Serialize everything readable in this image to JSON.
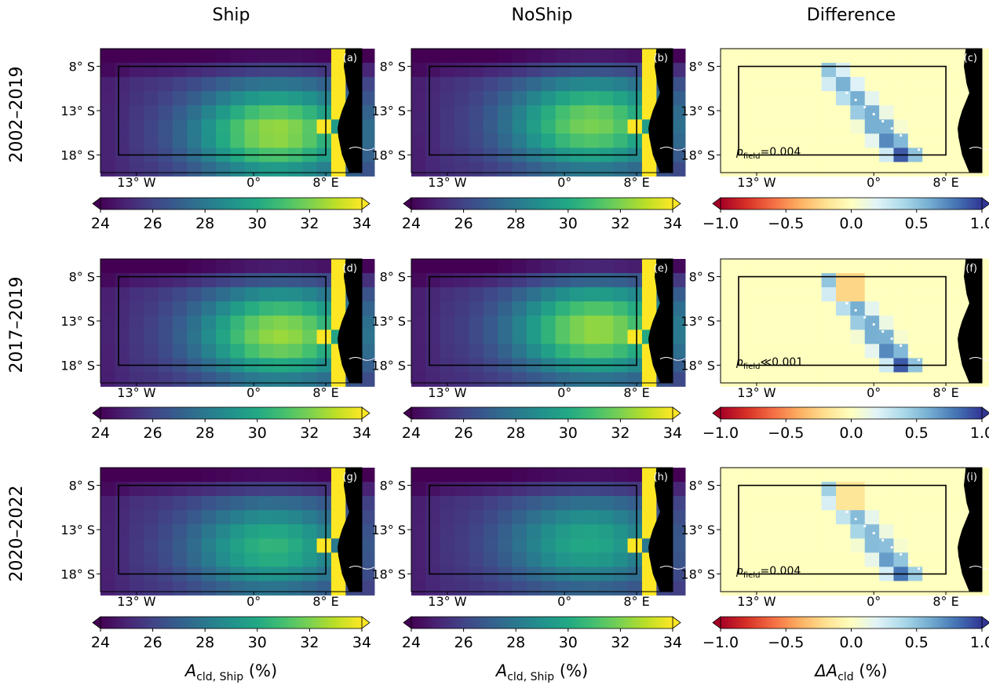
{
  "column_titles": [
    "Ship",
    "NoShip",
    "Difference"
  ],
  "row_labels": [
    "2002–2019",
    "2017–2019",
    "2020–2022"
  ],
  "panel_letters": [
    "(a)",
    "(b)",
    "(c)",
    "(d)",
    "(e)",
    "(f)",
    "(g)",
    "(h)",
    "(i)"
  ],
  "lat_ticks": [
    "8° S",
    "13° S",
    "18° S"
  ],
  "lon_ticks": [
    "13° W",
    "0°",
    "8° E"
  ],
  "colorbar_seq": {
    "ticks": [
      "24",
      "26",
      "28",
      "30",
      "32",
      "34"
    ],
    "range": [
      24,
      34
    ],
    "cmap": "viridis",
    "extend": "both"
  },
  "colorbar_div": {
    "ticks": [
      "−1.0",
      "−0.5",
      "0.0",
      "0.5",
      "1.0"
    ],
    "range": [
      -1,
      1
    ],
    "cmap": "RdYlBu",
    "extend": "both"
  },
  "xlabel_ship": {
    "base": "A",
    "sub": "cld, Ship",
    "unit": " (%)"
  },
  "xlabel_noship": {
    "base": "A",
    "sub": "cld, Ship",
    "unit": " (%)"
  },
  "xlabel_diff": {
    "base": "ΔA",
    "sub": "cld",
    "unit": " (%)"
  },
  "p_field": [
    {
      "p": "p",
      "sub": "field",
      "rel": "=",
      "val": "0.004"
    },
    {
      "p": "p",
      "sub": "field",
      "rel": "≪",
      "val": "0.001"
    },
    {
      "p": "p",
      "sub": "field",
      "rel": "=",
      "val": "0.004"
    }
  ],
  "colors": {
    "land": "#000000",
    "box": "#000000",
    "diff_zero": "#ffffbf"
  },
  "chart_data": {
    "type": "heatmap",
    "x_range": [
      -17,
      12
    ],
    "y_range": [
      -20,
      -6
    ],
    "box": {
      "lon": [
        -15,
        8
      ],
      "lat": [
        -18,
        -8
      ]
    },
    "panels": [
      {
        "id": "a",
        "row": "2002–2019",
        "col": "Ship",
        "peak": 32.5,
        "peak_lon": 2.5,
        "peak_lat": -15.5
      },
      {
        "id": "b",
        "row": "2002–2019",
        "col": "NoShip",
        "peak": 32.0,
        "peak_lon": 3.0,
        "peak_lat": -14.5
      },
      {
        "id": "c",
        "row": "2002–2019",
        "col": "Difference",
        "max_diff": 1.0,
        "significant_band": "NW–SE diagonal from 4° W,10° S to 6° E,18° S"
      },
      {
        "id": "d",
        "row": "2017–2019",
        "col": "Ship",
        "peak": 32.5,
        "peak_lon": 3.0,
        "peak_lat": -14.5
      },
      {
        "id": "e",
        "row": "2017–2019",
        "col": "NoShip",
        "peak": 32.5,
        "peak_lon": 3.5,
        "peak_lat": -14.0
      },
      {
        "id": "f",
        "row": "2017–2019",
        "col": "Difference",
        "max_diff": 1.0,
        "min_diff": -0.3,
        "significant_band": "NW–SE diagonal from 3° W,12° S to 5° E,18° S"
      },
      {
        "id": "g",
        "row": "2020–2022",
        "col": "Ship",
        "peak": 30.5,
        "peak_lon": 2.0,
        "peak_lat": -15.0
      },
      {
        "id": "h",
        "row": "2020–2022",
        "col": "NoShip",
        "peak": 30.0,
        "peak_lon": 2.5,
        "peak_lat": -14.5
      },
      {
        "id": "i",
        "row": "2020–2022",
        "col": "Difference",
        "max_diff": 0.9,
        "min_diff": -0.2,
        "significant_band": "NW–SE diagonal from 2° W,12° S to 4° E,17° S"
      }
    ]
  }
}
